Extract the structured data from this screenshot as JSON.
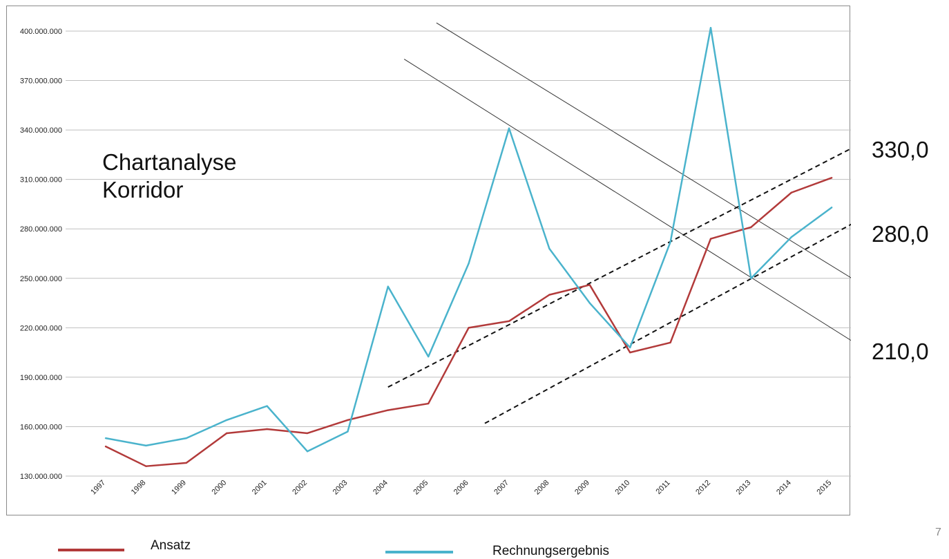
{
  "page_number": "7",
  "colors": {
    "ansatz": "#b23a3a",
    "rechnungsergebnis": "#4ab3cc",
    "grid": "#bfbfbf",
    "trendline": "#333333"
  },
  "overlay": {
    "title_line1": "Chartanalyse",
    "title_line2": "Korridor"
  },
  "corridor_labels": [
    "330,0",
    "280,0",
    "210,0"
  ],
  "legend": {
    "ansatz": "Ansatz",
    "rechnungsergebnis": "Rechnungsergebnis"
  },
  "chart_data": {
    "type": "line",
    "title": "",
    "xlabel": "",
    "ylabel": "",
    "categories": [
      "1997",
      "1998",
      "1999",
      "2000",
      "2001",
      "2002",
      "2003",
      "2004",
      "2005",
      "2006",
      "2007",
      "2008",
      "2009",
      "2010",
      "2011",
      "2012",
      "2013",
      "2014",
      "2015"
    ],
    "ylim": [
      130000000,
      400000000
    ],
    "ytick_values": [
      130000000,
      160000000,
      190000000,
      220000000,
      250000000,
      280000000,
      310000000,
      340000000,
      370000000,
      400000000
    ],
    "ytick_labels": [
      "130.000.000",
      "160.000.000",
      "190.000.000",
      "220.000.000",
      "250.000.000",
      "280.000.000",
      "310.000.000",
      "340.000.000",
      "370.000.000",
      "400.000.000"
    ],
    "grid": true,
    "legend_position": "bottom",
    "series": [
      {
        "name": "Ansatz",
        "color": "#b23a3a",
        "values": [
          148000000,
          136000000,
          138000000,
          156000000,
          158500000,
          156000000,
          164000000,
          170000000,
          174000000,
          220000000,
          224000000,
          240000000,
          246000000,
          205000000,
          211000000,
          274000000,
          281000000,
          302000000,
          311000000
        ]
      },
      {
        "name": "Rechnungsergebnis",
        "color": "#4ab3cc",
        "values": [
          153000000,
          148500000,
          153000000,
          164000000,
          172500000,
          145000000,
          157000000,
          245000000,
          202500000,
          259000000,
          341000000,
          268000000,
          235000000,
          208000000,
          272000000,
          402000000,
          250000000,
          275000000,
          293000000
        ]
      }
    ],
    "trend_lines": [
      {
        "style": "solid",
        "x_start": 2004.4,
        "y_start": 383000000,
        "x_end": 2015.5,
        "y_end": 212000000
      },
      {
        "style": "solid",
        "x_start": 2005.2,
        "y_start": 405000000,
        "x_end": 2015.5,
        "y_end": 250000000
      },
      {
        "style": "dashed",
        "x_start": 2004.0,
        "y_start": 184000000,
        "x_end": 2015.5,
        "y_end": 329000000
      },
      {
        "style": "dashed",
        "x_start": 2006.4,
        "y_start": 162000000,
        "x_end": 2015.5,
        "y_end": 283000000
      }
    ]
  }
}
